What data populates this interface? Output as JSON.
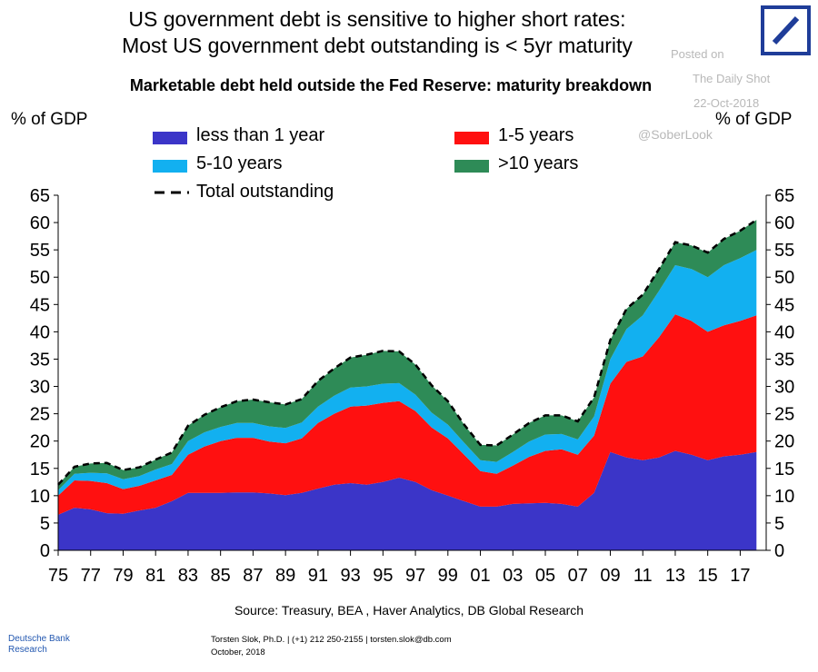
{
  "header": {
    "title_line1": "US government debt is sensitive to higher short rates:",
    "title_line2": "Most US government debt outstanding is < 5yr maturity"
  },
  "watermark": {
    "line1": "Posted on",
    "line2": "The Daily Shot",
    "date": "22-Oct-2018",
    "handle": "@SoberLook"
  },
  "logo": {
    "icon": "deutsche-bank-slash-logo",
    "color": "#1f3d99"
  },
  "chart_data": {
    "type": "area",
    "title": "Marketable debt held outside the Fed Reserve: maturity breakdown",
    "ylabel_left": "% of GDP",
    "ylabel_right": "% of GDP",
    "ylim": [
      0,
      65
    ],
    "yticks": [
      0,
      5,
      10,
      15,
      20,
      25,
      30,
      35,
      40,
      45,
      50,
      55,
      60,
      65
    ],
    "xlim": [
      1975,
      2018.6
    ],
    "xtick_labels": [
      "75",
      "77",
      "79",
      "81",
      "83",
      "85",
      "87",
      "89",
      "91",
      "93",
      "95",
      "97",
      "99",
      "01",
      "03",
      "05",
      "07",
      "09",
      "11",
      "13",
      "15",
      "17"
    ],
    "xtick_years": [
      1975,
      1977,
      1979,
      1981,
      1983,
      1985,
      1987,
      1989,
      1991,
      1993,
      1995,
      1997,
      1999,
      2001,
      2003,
      2005,
      2007,
      2009,
      2011,
      2013,
      2015,
      2017
    ],
    "stacked": true,
    "x": [
      1975,
      1976,
      1977,
      1978,
      1979,
      1980,
      1981,
      1982,
      1983,
      1984,
      1985,
      1986,
      1987,
      1988,
      1989,
      1990,
      1991,
      1992,
      1993,
      1994,
      1995,
      1996,
      1997,
      1998,
      1999,
      2000,
      2001,
      2002,
      2003,
      2004,
      2005,
      2006,
      2007,
      2008,
      2009,
      2010,
      2011,
      2012,
      2013,
      2014,
      2015,
      2016,
      2017,
      2018
    ],
    "series": [
      {
        "name": "less than 1 year",
        "color": "#3b35c8",
        "values": [
          6.5,
          7.8,
          7.5,
          6.8,
          6.7,
          7.3,
          7.8,
          9.0,
          10.5,
          10.5,
          10.5,
          10.6,
          10.6,
          10.4,
          10.1,
          10.5,
          11.3,
          12.0,
          12.3,
          12.0,
          12.5,
          13.3,
          12.5,
          11.0,
          10.0,
          9.0,
          8.0,
          8.0,
          8.5,
          8.6,
          8.7,
          8.5,
          8.0,
          10.5,
          18.0,
          17.0,
          16.5,
          17.0,
          18.2,
          17.5,
          16.5,
          17.2,
          17.5,
          18.0
        ]
      },
      {
        "name": "1-5 years",
        "color": "#ff1010",
        "values": [
          3.5,
          5.0,
          5.2,
          5.5,
          4.5,
          4.5,
          5.0,
          4.8,
          7.0,
          8.5,
          9.5,
          10.0,
          10.0,
          9.5,
          9.5,
          10.0,
          12.0,
          13.0,
          14.0,
          14.5,
          14.5,
          14.0,
          13.0,
          11.5,
          10.5,
          8.5,
          6.5,
          6.0,
          7.0,
          8.5,
          9.5,
          10.0,
          9.5,
          10.5,
          12.5,
          17.5,
          19.0,
          22.0,
          25.0,
          24.5,
          23.5,
          24.0,
          24.5,
          25.0
        ]
      },
      {
        "name": "5-10 years",
        "color": "#12b0f0",
        "values": [
          1.0,
          1.2,
          1.5,
          1.8,
          1.8,
          1.8,
          2.0,
          2.0,
          2.5,
          2.6,
          2.6,
          2.7,
          2.7,
          2.8,
          2.8,
          2.9,
          3.0,
          3.3,
          3.5,
          3.5,
          3.5,
          3.3,
          3.0,
          2.7,
          2.5,
          2.2,
          2.0,
          2.2,
          2.5,
          2.8,
          3.0,
          2.8,
          2.8,
          3.5,
          4.5,
          6.0,
          7.5,
          8.5,
          9.0,
          9.5,
          10.0,
          11.0,
          11.5,
          12.0
        ]
      },
      {
        "name": ">10 years",
        "color": "#2e8b57",
        "values": [
          1.0,
          1.3,
          1.7,
          1.9,
          1.7,
          1.6,
          1.8,
          2.1,
          2.8,
          3.2,
          3.6,
          4.0,
          4.3,
          4.4,
          4.3,
          4.3,
          4.7,
          5.0,
          5.5,
          5.8,
          6.0,
          5.8,
          5.5,
          5.0,
          4.3,
          3.3,
          2.8,
          3.0,
          3.2,
          3.4,
          3.5,
          3.4,
          3.3,
          3.5,
          3.5,
          3.7,
          3.8,
          4.0,
          4.2,
          4.3,
          4.5,
          4.8,
          5.0,
          5.5
        ]
      }
    ],
    "total_line": {
      "name": "Total outstanding",
      "style": "dashed",
      "color": "#000000"
    },
    "legend": [
      "less than 1 year",
      "1-5 years",
      "5-10 years",
      ">10 years",
      "Total outstanding"
    ],
    "grid": false
  },
  "source": "Source: Treasury, BEA , Haver Analytics, DB Global  Research",
  "footer": {
    "db_line1": "Deutsche Bank",
    "db_line2": "Research",
    "author_line": "Torsten Slok, Ph.D. | (+1) 212 250-2155 | torsten.slok@db.com",
    "date": "October, 2018"
  }
}
